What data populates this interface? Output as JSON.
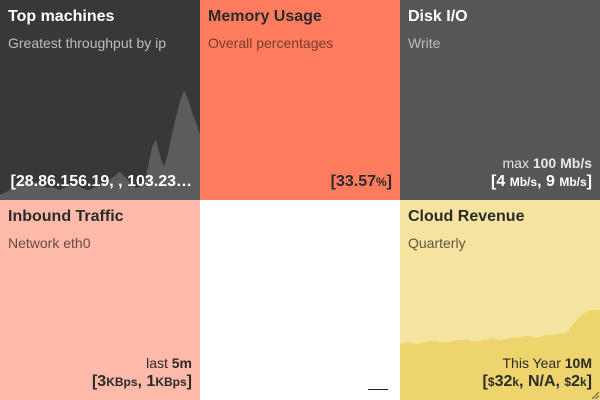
{
  "tiles": {
    "top_machines": {
      "title": "Top machines",
      "subtitle": "Greatest throughput by ip",
      "value": "[28.86.156.19, , 103.23…"
    },
    "memory": {
      "title": "Memory Usage",
      "subtitle": "Overall percentages",
      "value_open": "[",
      "value_num": "33.57",
      "value_unit": "%",
      "value_close": "]"
    },
    "disk": {
      "title": "Disk I/O",
      "subtitle": "Write",
      "meta_prefix": "max",
      "meta_value": "100 Mb/s",
      "v_open": "[",
      "v1": "4",
      "v1_unit": "Mb/s",
      "sep": ", ",
      "v2": "9",
      "v2_unit": "Mb/s",
      "v_close": "]"
    },
    "inbound": {
      "title": "Inbound Traffic",
      "subtitle": "Network eth0",
      "meta_prefix": "last",
      "meta_value": "5m",
      "v_open": "[",
      "v1": "3",
      "v1_unit": "KBps",
      "sep": ", ",
      "v2": "1",
      "v2_unit": "KBps",
      "v_close": "]"
    },
    "revenue": {
      "title": "Cloud Revenue",
      "subtitle": "Quarterly",
      "meta_prefix": "This Year",
      "meta_value": "10M",
      "v_open": "[",
      "c1": "$",
      "v1": "32",
      "v1_unit": "k",
      "sep1": ", ",
      "v2": "N/A",
      "sep2": ", ",
      "c3": "$",
      "v3": "2",
      "v3_unit": "k",
      "v_close": "]"
    }
  },
  "colors": {
    "top_machines_bg": "#383838",
    "memory_bg": "#fd7c5d",
    "disk_bg": "#565656",
    "inbound_bg": "#fdbaa9",
    "revenue_bg": "#f5e3a0",
    "revenue_area": "#eed46c"
  },
  "sparklines": {
    "top_machines": [
      5,
      6,
      8,
      10,
      14,
      16,
      18,
      17,
      15,
      16,
      14,
      12,
      11,
      12,
      10,
      9,
      11,
      13,
      15,
      14,
      12,
      10,
      9,
      10,
      12,
      14,
      15,
      17,
      20,
      23,
      26,
      22,
      18,
      14,
      11,
      12,
      14,
      30,
      48,
      55,
      40,
      30,
      42,
      60,
      75,
      90,
      100,
      92,
      80,
      70,
      60
    ],
    "revenue": [
      45,
      45,
      46,
      46,
      45,
      45,
      46,
      46,
      47,
      47,
      47,
      46,
      46,
      46,
      47,
      47,
      48,
      48,
      48,
      48,
      47,
      47,
      47,
      48,
      48,
      49,
      49,
      48,
      48,
      49,
      49,
      50,
      50,
      50,
      51,
      51,
      51,
      50,
      50,
      51,
      52,
      52,
      52,
      52,
      53,
      53,
      54,
      58,
      62,
      65,
      68,
      70,
      72,
      72,
      72,
      72
    ]
  }
}
